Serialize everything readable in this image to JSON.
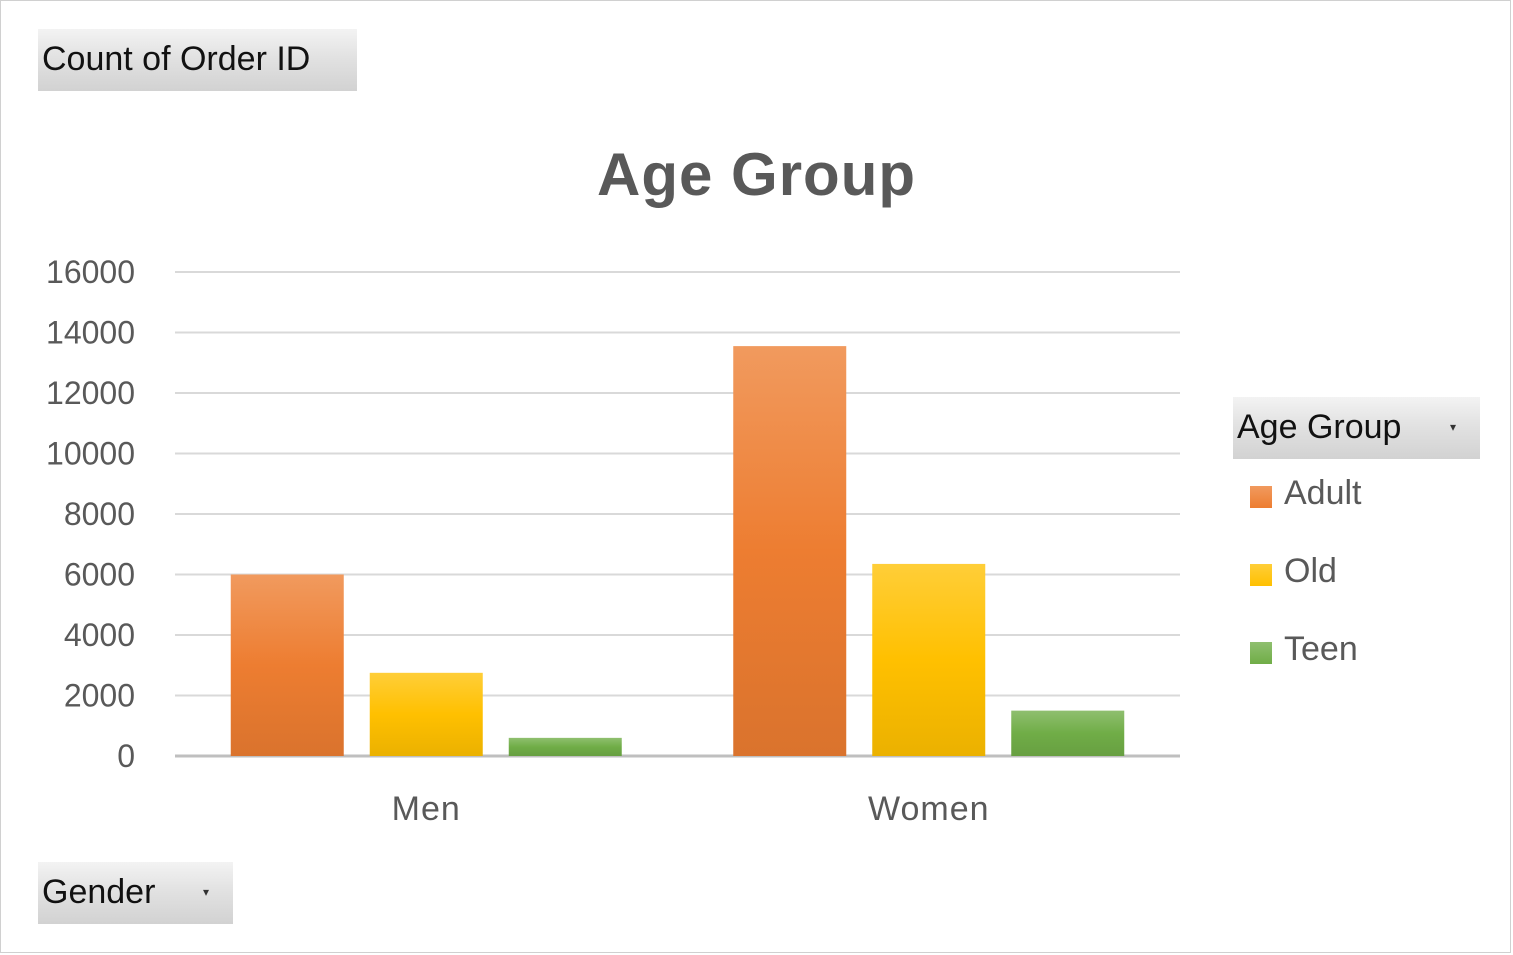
{
  "pivot": {
    "values_field": "Count of Order ID",
    "axis_field": "Gender",
    "legend_field": "Age Group",
    "dropdown_icon": "chevron-down-icon"
  },
  "chart_data": {
    "type": "bar",
    "title": "Age Group",
    "xlabel": "",
    "ylabel": "",
    "categories": [
      "Men",
      "Women"
    ],
    "series": [
      {
        "name": "Adult",
        "values": [
          6000,
          13550
        ],
        "color": "#ED7D31"
      },
      {
        "name": "Old",
        "values": [
          2750,
          6350
        ],
        "color": "#FFC000"
      },
      {
        "name": "Teen",
        "values": [
          600,
          1500
        ],
        "color": "#70AD47"
      }
    ],
    "ylim": [
      0,
      16000
    ],
    "yticks": [
      0,
      2000,
      4000,
      6000,
      8000,
      10000,
      12000,
      14000,
      16000
    ],
    "grid": true,
    "legend_position": "right"
  }
}
